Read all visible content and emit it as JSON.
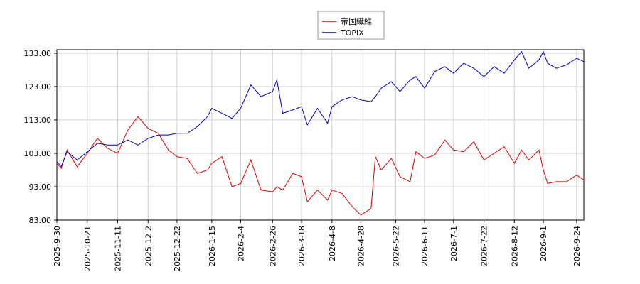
{
  "chart_data": {
    "type": "line",
    "x": [
      "2025-09-30",
      "2025-10-03",
      "2025-10-07",
      "2025-10-14",
      "2025-10-21",
      "2025-10-28",
      "2025-11-04",
      "2025-11-11",
      "2025-11-18",
      "2025-11-25",
      "2025-12-02",
      "2025-12-09",
      "2025-12-16",
      "2025-12-22",
      "2025-12-29",
      "2026-01-05",
      "2026-01-12",
      "2026-01-15",
      "2026-01-22",
      "2026-01-29",
      "2026-02-04",
      "2026-02-11",
      "2026-02-18",
      "2026-02-26",
      "2026-03-01",
      "2026-03-05",
      "2026-03-12",
      "2026-03-18",
      "2026-03-22",
      "2026-03-29",
      "2026-04-05",
      "2026-04-08",
      "2026-04-15",
      "2026-04-22",
      "2026-04-28",
      "2026-05-05",
      "2026-05-08",
      "2026-05-12",
      "2026-05-19",
      "2026-05-25",
      "2026-06-01",
      "2026-06-05",
      "2026-06-11",
      "2026-06-18",
      "2026-06-25",
      "2026-07-01",
      "2026-07-08",
      "2026-07-15",
      "2026-07-22",
      "2026-07-29",
      "2026-08-05",
      "2026-08-12",
      "2026-08-17",
      "2026-08-22",
      "2026-08-29",
      "2026-09-01",
      "2026-09-04",
      "2026-09-10",
      "2026-09-17",
      "2026-09-24",
      "2026-09-29"
    ],
    "series": [
      {
        "name": "帝国繊維",
        "color": "#dd0000",
        "values": [
          100,
          98.5,
          104,
          99,
          103,
          107.5,
          104.5,
          103,
          110,
          114,
          110.5,
          109,
          104,
          102,
          101.5,
          97,
          98,
          100,
          102,
          93,
          94,
          101,
          92,
          91.5,
          93,
          92,
          97,
          96,
          88.5,
          92,
          89,
          92,
          91,
          87,
          84.5,
          86.5,
          102,
          98,
          101.5,
          96,
          94.5,
          103.5,
          101.5,
          102.5,
          107,
          104,
          103.5,
          106.5,
          101,
          103,
          105,
          100,
          104,
          101,
          104,
          98,
          94,
          94.5,
          94.5,
          96.5,
          95
        ]
      },
      {
        "name": "TOPIX",
        "color": "#0000cc",
        "values": [
          100.5,
          99,
          103.5,
          101,
          103.5,
          106,
          105.5,
          105.5,
          107,
          105.5,
          107.5,
          108.5,
          108.5,
          109,
          109,
          111,
          114,
          116.5,
          115,
          113.5,
          116.5,
          123.5,
          120,
          121.5,
          125,
          115,
          116,
          117,
          111.5,
          116.5,
          112,
          117,
          119,
          120,
          119,
          118.5,
          120,
          122.5,
          124.5,
          121.5,
          125,
          126,
          122.5,
          127.5,
          129,
          127,
          130,
          128.5,
          126,
          129,
          127,
          131,
          133.5,
          128.5,
          131,
          133.5,
          130,
          128.5,
          129.5,
          131.5,
          130.5
        ]
      }
    ],
    "xlim": [
      "2025-09-30",
      "2026-09-29"
    ],
    "xticks": [
      "2025-9-30",
      "2025-10-21",
      "2025-11-11",
      "2025-12-2",
      "2025-12-22",
      "2026-1-15",
      "2026-2-4",
      "2026-2-26",
      "2026-3-18",
      "2026-4-8",
      "2026-4-28",
      "2026-5-22",
      "2026-6-11",
      "2026-7-1",
      "2026-7-22",
      "2026-8-12",
      "2026-9-1",
      "2026-9-24"
    ],
    "ylim": [
      83,
      133
    ],
    "yticks": [
      {
        "value": 83,
        "label": "83.00"
      },
      {
        "value": 93,
        "label": "93.00"
      },
      {
        "value": 103,
        "label": "103.00"
      },
      {
        "value": 113,
        "label": "113.00"
      },
      {
        "value": 123,
        "label": "123.00"
      },
      {
        "value": 133,
        "label": "133.00"
      }
    ],
    "grid": true
  }
}
